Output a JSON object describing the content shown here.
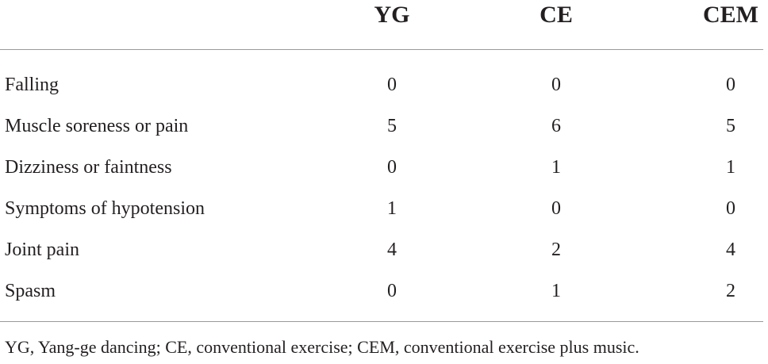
{
  "table": {
    "columns": [
      "",
      "YG",
      "CE",
      "CEM"
    ],
    "rows": [
      {
        "label": "Falling",
        "values": [
          "0",
          "0",
          "0"
        ]
      },
      {
        "label": "Muscle soreness or pain",
        "values": [
          "5",
          "6",
          "5"
        ]
      },
      {
        "label": "Dizziness or faintness",
        "values": [
          "0",
          "1",
          "1"
        ]
      },
      {
        "label": "Symptoms of hypotension",
        "values": [
          "1",
          "0",
          "0"
        ]
      },
      {
        "label": "Joint pain",
        "values": [
          "4",
          "2",
          "4"
        ]
      },
      {
        "label": "Spasm",
        "values": [
          "0",
          "1",
          "2"
        ]
      }
    ],
    "footnote": "YG, Yang-ge dancing; CE, conventional exercise; CEM, conventional exercise plus music."
  }
}
